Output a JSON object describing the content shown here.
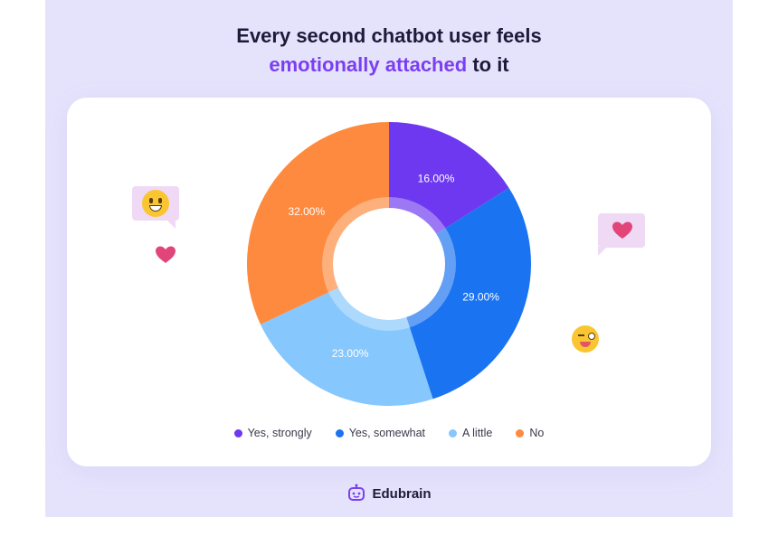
{
  "title": {
    "line1": "Every second chatbot user feels",
    "highlight": "emotionally attached",
    "rest": "to it"
  },
  "colors": {
    "accent": "#7b3ff2",
    "yes_strongly": "#6d38f0",
    "yes_somewhat": "#1a73f0",
    "a_little": "#86c7fd",
    "no": "#fd8a3f",
    "panel_bg": "#e5e3fc"
  },
  "chart_data": {
    "type": "pie",
    "variant": "donut",
    "title": "",
    "categories": [
      "Yes, strongly",
      "Yes, somewhat",
      "A little",
      "No"
    ],
    "values": [
      16.0,
      29.0,
      23.0,
      32.0
    ],
    "labels": [
      "16.00%",
      "29.00%",
      "23.00%",
      "32.00%"
    ],
    "colors": [
      "#6d38f0",
      "#1a73f0",
      "#86c7fd",
      "#fd8a3f"
    ],
    "legend_position": "bottom-center"
  },
  "brand": {
    "name": "Edubrain",
    "icon": "robot-head-icon"
  },
  "decorations": [
    "smile-emoji-bubble-icon",
    "heart-icon",
    "heart-bubble-icon",
    "wink-emoji-icon"
  ]
}
